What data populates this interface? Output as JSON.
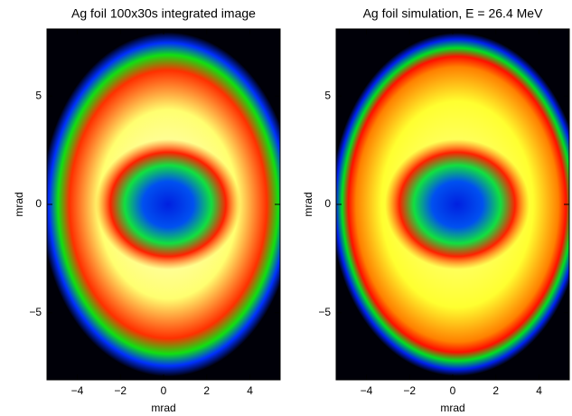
{
  "chart_data": [
    {
      "type": "heatmap",
      "title": "Ag foil 100x30s integrated image",
      "xlabel": "mrad",
      "ylabel": "mrad",
      "xlim": [
        -5.4,
        5.4
      ],
      "ylim": [
        -8.1,
        8.1
      ],
      "xticks": [
        {
          "value": -4,
          "label": "−4"
        },
        {
          "value": -2,
          "label": "−2"
        },
        0,
        2,
        4
      ],
      "yticks": [
        {
          "value": -5,
          "label": "−5"
        },
        0,
        5
      ]
    },
    {
      "type": "heatmap",
      "title": "Ag foil simulation, E = 26.4 MeV",
      "xlabel": "mrad",
      "ylabel": "mrad",
      "xlim": [
        -5.4,
        5.4
      ],
      "ylim": [
        -8.1,
        8.1
      ],
      "xticks": [
        {
          "value": -4,
          "label": "−4"
        },
        {
          "value": -2,
          "label": "−2"
        },
        0,
        2,
        4
      ],
      "yticks": [
        {
          "value": -5,
          "label": "−5"
        },
        0,
        5
      ]
    }
  ]
}
